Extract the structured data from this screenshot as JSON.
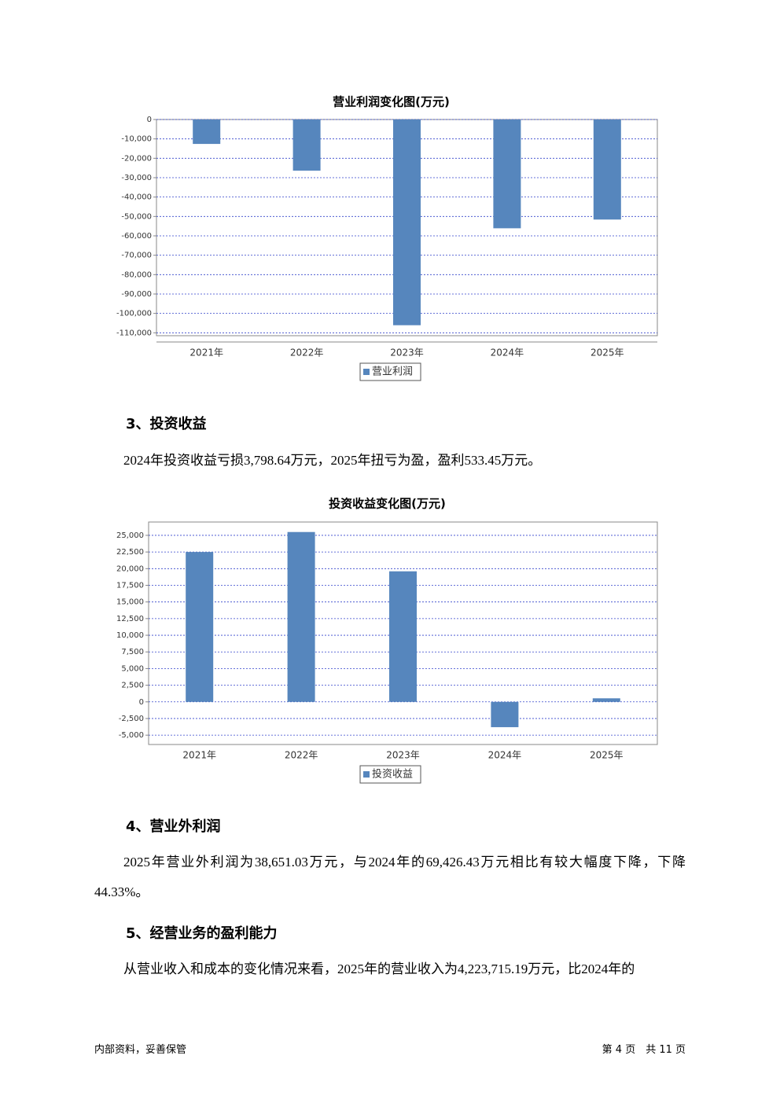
{
  "chart_data": [
    {
      "type": "bar",
      "title": "营业利润变化图(万元)",
      "categories": [
        "2021年",
        "2022年",
        "2023年",
        "2024年",
        "2025年"
      ],
      "series": [
        {
          "name": "营业利润",
          "color": "#5686bd",
          "values": [
            -12600,
            -26400,
            -106100,
            -56100,
            -51600
          ]
        }
      ],
      "ylim": [
        -111500,
        0
      ],
      "yticks": [
        0,
        {
          "value": -10000,
          "label": "-10,000"
        },
        {
          "value": -20000,
          "label": "-20,000"
        },
        {
          "value": -30000,
          "label": "-30,000"
        },
        {
          "value": -40000,
          "label": "-40,000"
        },
        {
          "value": -50000,
          "label": "-50,000"
        },
        {
          "value": -60000,
          "label": "-60,000"
        },
        {
          "value": -70000,
          "label": "-70,000"
        },
        {
          "value": -80000,
          "label": "-80,000"
        },
        {
          "value": -90000,
          "label": "-90,000"
        },
        {
          "value": -100000,
          "label": "-100,000"
        },
        {
          "value": -110000,
          "label": "-110,000"
        }
      ],
      "grid": true
    },
    {
      "type": "bar",
      "title": "投资收益变化图(万元)",
      "categories": [
        "2021年",
        "2022年",
        "2023年",
        "2024年",
        "2025年"
      ],
      "series": [
        {
          "name": "投资收益",
          "color": "#5686bd",
          "values": [
            22500,
            25500,
            19600,
            -3798.64,
            533.45
          ]
        }
      ],
      "ylim": [
        -6400,
        27000
      ],
      "yticks": [
        {
          "value": 25000,
          "label": "25,000"
        },
        {
          "value": 22500,
          "label": "22,500"
        },
        {
          "value": 20000,
          "label": "20,000"
        },
        {
          "value": 17500,
          "label": "17,500"
        },
        {
          "value": 15000,
          "label": "15,000"
        },
        {
          "value": 12500,
          "label": "12,500"
        },
        {
          "value": 10000,
          "label": "10,000"
        },
        {
          "value": 7500,
          "label": "7,500"
        },
        {
          "value": 5000,
          "label": "5,000"
        },
        {
          "value": 2500,
          "label": "2,500"
        },
        0,
        {
          "value": -2500,
          "label": "-2,500"
        },
        {
          "value": -5000,
          "label": "-5,000"
        }
      ],
      "grid": true
    }
  ],
  "sections": [
    {
      "heading": "3、投资收益",
      "text": "2024年投资收益亏损3,798.64万元，2025年扭亏为盈，盈利533.45万元。"
    },
    {
      "heading": "4、营业外利润",
      "text": "2025年营业外利润为38,651.03万元，与2024年的69,426.43万元相比有较大幅度下降，下降44.33%。"
    },
    {
      "heading": "5、经营业务的盈利能力",
      "text": "从营业收入和成本的变化情况来看，2025年的营业收入为4,223,715.19万元，比2024年的"
    }
  ],
  "footer": {
    "left": "内部资料，妥善保管",
    "right": "第 4 页　共 11 页"
  }
}
